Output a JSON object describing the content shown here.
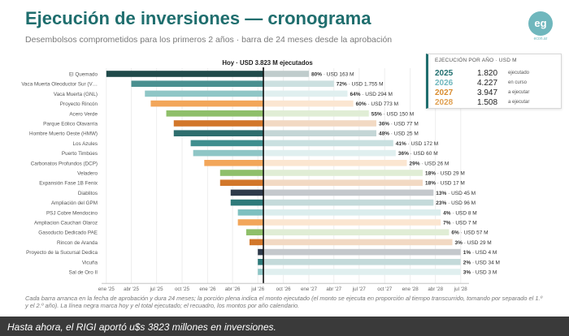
{
  "header": {
    "title": "Ejecución de inversiones — cronograma",
    "subtitle": "Desembolsos comprometidos para los primeros 2 años · barra de 24 meses desde la aprobación",
    "logo_text": "eg",
    "logo_sub": "econ.ar"
  },
  "legend": {
    "title": "EJECUCIÓN POR AÑO · USD M",
    "rows": [
      {
        "year": "2025",
        "amount": "1.820",
        "status": "ejecutado",
        "color": "#1f6e6e"
      },
      {
        "year": "2026",
        "amount": "4.227",
        "status": "en curso",
        "color": "#6fb7bd"
      },
      {
        "year": "2027",
        "amount": "3.947",
        "status": "a ejecutar",
        "color": "#d98c2e"
      },
      {
        "year": "2028",
        "amount": "1.508",
        "status": "a ejecutar",
        "color": "#e0a050"
      }
    ]
  },
  "footnote": "Cada barra arranca en la fecha de aprobación y dura 24 meses; la porción plena indica el monto ejecutado (el monto se ejecuta en proporción al tiempo transcurrido, tomando por separado el 1.º y el 2.º año). La línea negra marca hoy y el total ejecutado; el recuadro, los montos por año calendario.",
  "caption": "Hasta ahora, el RIGI aportó u$s 3823 millones en inversiones.",
  "chart_data": {
    "type": "bar",
    "subtype": "gantt",
    "today_label": "Hoy · USD 3.823 M ejecutados",
    "today": "2026-07-21",
    "xlim": [
      "2024-12-15",
      "2028-07-31"
    ],
    "x_ticks": [
      "ene '25",
      "abr '25",
      "jul '25",
      "oct '25",
      "ene '26",
      "abr '26",
      "jul '26",
      "oct '26",
      "ene '27",
      "abr '27",
      "jul '27",
      "oct '27",
      "ene '28",
      "abr '28",
      "jul '28"
    ],
    "colors": {
      "teal_dark": "#1f6e6e",
      "teal": "#4a9a9a",
      "teal_light": "#7fc0c0",
      "orange": "#f2a65a",
      "orange_dark": "#d2772a",
      "green": "#5f8f3a",
      "green_light": "#8fbf6a",
      "navy": "#2e3a4a"
    },
    "projects": [
      {
        "name": "El Quemado",
        "start": "2025-01-01",
        "pct": "80%",
        "amount": "USD 163 M",
        "color": "#1f4a4a"
      },
      {
        "name": "Vaca Muerta  Oleoductor Sur (V…",
        "start": "2025-04-01",
        "pct": "72%",
        "amount": "USD 1.755 M",
        "color": "#4a8f8f"
      },
      {
        "name": "Vaca Muerta (GNL)",
        "start": "2025-05-20",
        "pct": "64%",
        "amount": "USD 294 M",
        "color": "#8fc6c6"
      },
      {
        "name": "Proyecto Rincón",
        "start": "2025-06-10",
        "pct": "60%",
        "amount": "USD 773 M",
        "color": "#f2a65a"
      },
      {
        "name": "Acero Verde",
        "start": "2025-08-05",
        "pct": "55%",
        "amount": "USD 150 M",
        "color": "#8fbf6a"
      },
      {
        "name": "Parque Eólico Olavarría",
        "start": "2025-09-01",
        "pct": "36%",
        "amount": "USD 77 M",
        "color": "#d2772a"
      },
      {
        "name": "Hombre Muerto Oeste (HMW)",
        "start": "2025-09-01",
        "pct": "48%",
        "amount": "USD 25 M",
        "color": "#2e6e6e"
      },
      {
        "name": "Los Azules",
        "start": "2025-11-01",
        "pct": "41%",
        "amount": "USD 172 M",
        "color": "#3f8f8f"
      },
      {
        "name": "Puerto Timbúes",
        "start": "2025-11-10",
        "pct": "36%",
        "amount": "USD 60 M",
        "color": "#8fc6c6"
      },
      {
        "name": "Carbonatos Profundos (DCP)",
        "start": "2025-12-20",
        "pct": "29%",
        "amount": "USD 26 M",
        "color": "#f2a65a"
      },
      {
        "name": "Veladero",
        "start": "2026-02-15",
        "pct": "18%",
        "amount": "USD 29 M",
        "color": "#8fbf6a"
      },
      {
        "name": "Expansión Fase 1B Fenix",
        "start": "2026-02-15",
        "pct": "18%",
        "amount": "USD 17 M",
        "color": "#d2772a"
      },
      {
        "name": "Diablitos",
        "start": "2026-03-25",
        "pct": "13%",
        "amount": "USD 45 M",
        "color": "#2e3a4a"
      },
      {
        "name": "Ampliación del GPM",
        "start": "2026-03-25",
        "pct": "23%",
        "amount": "USD 96 M",
        "color": "#2e7a7a"
      },
      {
        "name": "PSJ Cobre Mendocino",
        "start": "2026-04-20",
        "pct": "4%",
        "amount": "USD 8 M",
        "color": "#7fc0c0"
      },
      {
        "name": "Ampliacion Cauchari Olaroz",
        "start": "2026-04-20",
        "pct": "7%",
        "amount": "USD 7 M",
        "color": "#f2a65a"
      },
      {
        "name": "Gasoducto Dedicado PAE",
        "start": "2026-05-20",
        "pct": "6%",
        "amount": "USD 57 M",
        "color": "#8fbf6a"
      },
      {
        "name": "Rincon de Aranda",
        "start": "2026-06-01",
        "pct": "3%",
        "amount": "USD 29 M",
        "color": "#d2772a"
      },
      {
        "name": "Proyecto de la Sucursal Dedica",
        "start": "2026-07-01",
        "pct": "1%",
        "amount": "USD 4 M",
        "color": "#2e3a4a"
      },
      {
        "name": "Vicuña",
        "start": "2026-07-01",
        "pct": "2%",
        "amount": "USD 34 M",
        "color": "#2e7a7a"
      },
      {
        "name": "Sal de Oro II",
        "start": "2026-07-01",
        "pct": "3%",
        "amount": "USD 3 M",
        "color": "#8fc6c6"
      }
    ]
  }
}
